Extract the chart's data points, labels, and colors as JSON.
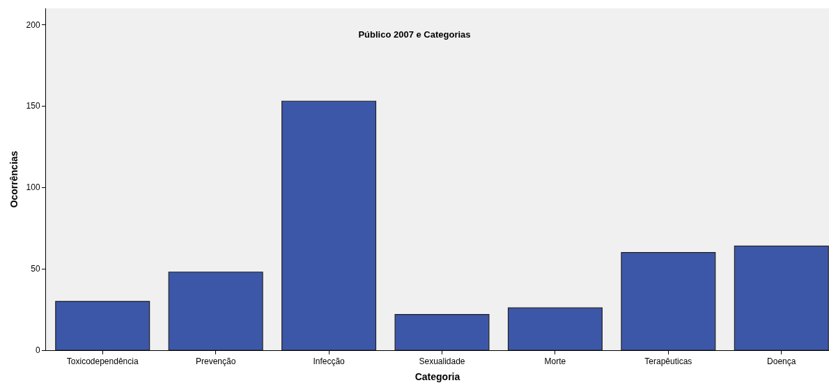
{
  "chart_data": {
    "type": "bar",
    "title": "Público 2007 e Categorias",
    "xlabel": "Categoria",
    "ylabel": "Ocorrências",
    "categories": [
      "Toxicodependência",
      "Prevenção",
      "Infecção",
      "Sexualidade",
      "Morte",
      "Terapêuticas",
      "Doença"
    ],
    "values": [
      30,
      48,
      153,
      22,
      26,
      60,
      64
    ],
    "color": "#3d57a8",
    "ylim": [
      0,
      210
    ],
    "yticks": [
      0,
      50,
      100,
      150,
      200
    ],
    "grid": false
  }
}
